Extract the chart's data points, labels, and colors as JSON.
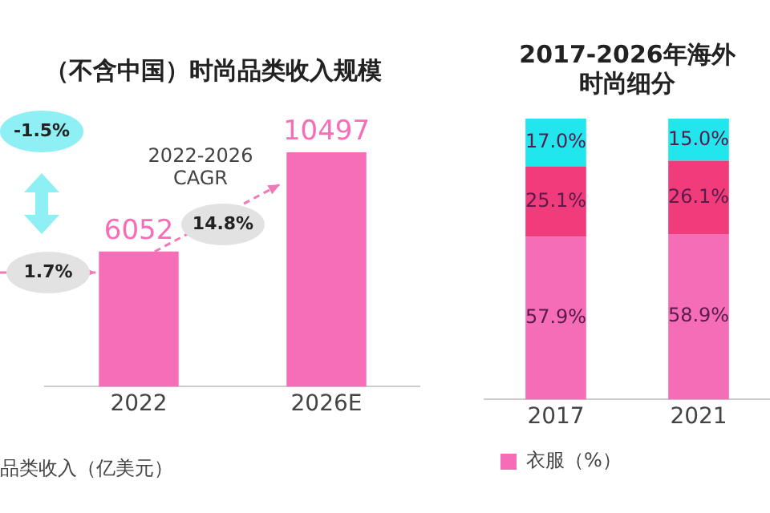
{
  "chart_data": [
    {
      "type": "bar",
      "title": "（不含中国）时尚品类收入规模",
      "categories": [
        "2022",
        "2026E"
      ],
      "series": [
        {
          "color": "#f76eb8",
          "values": [
            6052,
            10497
          ]
        }
      ],
      "data_labels": true,
      "grid": false,
      "legend": false,
      "tick_labels": "x",
      "annotations": [
        "-1.5%",
        "1.7%",
        "2022-2026\nCAGR",
        "14.8%",
        "品类收入（亿美元）"
      ]
    },
    {
      "type": "bar",
      "title": [
        "2017-2026年海外",
        "时尚细分"
      ],
      "categories": [
        "2017",
        "2021"
      ],
      "stacked": true,
      "series": [
        {
          "name": "衣服（%）",
          "color": "#f56db5",
          "values": [
            57.9,
            58.9
          ],
          "value_labels": [
            "57.9%",
            "58.9%"
          ]
        },
        {
          "color": "#f03c7a",
          "values": [
            25.1,
            26.1
          ],
          "value_labels": [
            "25.1%",
            "26.1%"
          ]
        },
        {
          "color": "#22e6ee",
          "values": [
            17.0,
            15.0
          ],
          "value_labels": [
            "17.0%",
            "15.0%"
          ]
        }
      ],
      "ylim": [
        0,
        100
      ],
      "grid": false,
      "legend": "bottom",
      "tick_labels": "x"
    }
  ]
}
